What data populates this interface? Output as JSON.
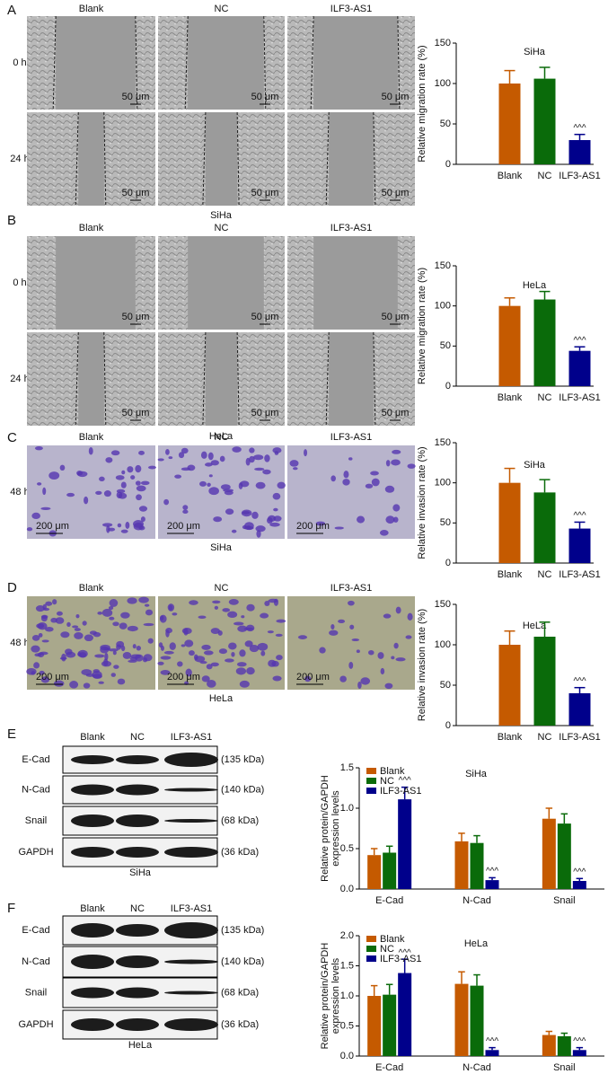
{
  "figure": {
    "panels": [
      {
        "letter": "A",
        "columns": [
          "Blank",
          "NC",
          "ILF3-AS1"
        ],
        "rows": [
          "0 h",
          "24 h"
        ],
        "scale_bar": "50 μm",
        "caption": "SiHa"
      },
      {
        "letter": "B",
        "columns": [
          "Blank",
          "NC",
          "ILF3-AS1"
        ],
        "rows": [
          "0 h",
          "24 h"
        ],
        "scale_bar": "50 μm",
        "caption": "HeLa"
      },
      {
        "letter": "C",
        "columns": [
          "Blank",
          "NC",
          "ILF3-AS1"
        ],
        "rows": [
          "48 h"
        ],
        "scale_bar": "200 μm",
        "caption": "SiHa"
      },
      {
        "letter": "D",
        "columns": [
          "Blank",
          "NC",
          "ILF3-AS1"
        ],
        "rows": [
          "48 h"
        ],
        "scale_bar": "200 μm",
        "caption": "HeLa"
      }
    ],
    "blots": [
      {
        "letter": "E",
        "columns": [
          "Blank",
          "NC",
          "ILF3-AS1"
        ],
        "rows": [
          "E-Cad",
          "N-Cad",
          "Snail",
          "GAPDH"
        ],
        "sizes": [
          "(135 kDa)",
          "(140 kDa)",
          "(68 kDa)",
          "(36 kDa)"
        ],
        "caption": "SiHa"
      },
      {
        "letter": "F",
        "columns": [
          "Blank",
          "NC",
          "ILF3-AS1"
        ],
        "rows": [
          "E-Cad",
          "N-Cad",
          "Snail",
          "GAPDH"
        ],
        "sizes": [
          "(135 kDa)",
          "(140 kDa)",
          "(68 kDa)",
          "(36 kDa)"
        ],
        "caption": "HeLa"
      }
    ]
  },
  "chart_data": [
    {
      "type": "bar",
      "title": "SiHa",
      "ylabel": [
        "Relative migration rate (%)"
      ],
      "categories": [
        "Blank",
        "NC",
        "ILF3-AS1"
      ],
      "values": [
        100,
        106,
        30
      ],
      "errors": [
        16,
        14,
        7
      ],
      "colors": [
        "#c55a00",
        "#0a6b0a",
        "#00008b"
      ],
      "annotations": [
        null,
        null,
        "^^^"
      ],
      "ylim": [
        0,
        150
      ],
      "yticks": [
        0,
        50,
        100,
        150
      ]
    },
    {
      "type": "bar",
      "title": "HeLa",
      "ylabel": [
        "Relative migration rate (%)"
      ],
      "categories": [
        "Blank",
        "NC",
        "ILF3-AS1"
      ],
      "values": [
        100,
        108,
        44
      ],
      "errors": [
        10,
        10,
        5
      ],
      "colors": [
        "#c55a00",
        "#0a6b0a",
        "#00008b"
      ],
      "annotations": [
        null,
        null,
        "^^^"
      ],
      "ylim": [
        0,
        150
      ],
      "yticks": [
        0,
        50,
        100,
        150
      ]
    },
    {
      "type": "bar",
      "title": "SiHa",
      "ylabel": [
        "Relative invasion rate (%)"
      ],
      "categories": [
        "Blank",
        "NC",
        "ILF3-AS1"
      ],
      "values": [
        100,
        88,
        43
      ],
      "errors": [
        18,
        16,
        8
      ],
      "colors": [
        "#c55a00",
        "#0a6b0a",
        "#00008b"
      ],
      "annotations": [
        null,
        null,
        "^^^"
      ],
      "ylim": [
        0,
        150
      ],
      "yticks": [
        0,
        50,
        100,
        150
      ]
    },
    {
      "type": "bar",
      "title": "HeLa",
      "ylabel": [
        "Relative invasion rate (%)"
      ],
      "categories": [
        "Blank",
        "NC",
        "ILF3-AS1"
      ],
      "values": [
        100,
        110,
        40
      ],
      "errors": [
        17,
        18,
        7
      ],
      "colors": [
        "#c55a00",
        "#0a6b0a",
        "#00008b"
      ],
      "annotations": [
        null,
        null,
        "^^^"
      ],
      "ylim": [
        0,
        150
      ],
      "yticks": [
        0,
        50,
        100,
        150
      ]
    },
    {
      "type": "grouped_bar",
      "title": "SiHa",
      "ylabel": [
        "Relative protein/GAPDH",
        "expression levels"
      ],
      "categories": [
        "E-Cad",
        "N-Cad",
        "Snail"
      ],
      "series": [
        {
          "name": "Blank",
          "color": "#c55a00",
          "values": [
            0.42,
            0.59,
            0.87
          ],
          "errors": [
            0.08,
            0.1,
            0.13
          ],
          "annotations": [
            null,
            null,
            null
          ]
        },
        {
          "name": "NC",
          "color": "#0a6b0a",
          "values": [
            0.45,
            0.57,
            0.81
          ],
          "errors": [
            0.08,
            0.09,
            0.12
          ],
          "annotations": [
            null,
            null,
            null
          ]
        },
        {
          "name": "ILF3-AS1",
          "color": "#00008b",
          "values": [
            1.11,
            0.11,
            0.1
          ],
          "errors": [
            0.15,
            0.03,
            0.03
          ],
          "annotations": [
            "^^^",
            "^^^",
            "^^^"
          ]
        }
      ],
      "ylim": [
        0,
        1.5
      ],
      "yticks": [
        {
          "value": 0,
          "label": "0.0"
        },
        {
          "value": 0.5,
          "label": "0.5"
        },
        {
          "value": 1,
          "label": "1.0"
        },
        {
          "value": 1.5,
          "label": "1.5"
        }
      ],
      "legend": "top-left"
    },
    {
      "type": "grouped_bar",
      "title": "HeLa",
      "ylabel": [
        "Relative protein/GAPDH",
        "expression levels"
      ],
      "categories": [
        "E-Cad",
        "N-Cad",
        "Snail"
      ],
      "series": [
        {
          "name": "Blank",
          "color": "#c55a00",
          "values": [
            1.0,
            1.2,
            0.35
          ],
          "errors": [
            0.17,
            0.2,
            0.06
          ],
          "annotations": [
            null,
            null,
            null
          ]
        },
        {
          "name": "NC",
          "color": "#0a6b0a",
          "values": [
            1.02,
            1.17,
            0.33
          ],
          "errors": [
            0.17,
            0.18,
            0.05
          ],
          "annotations": [
            null,
            null,
            null
          ]
        },
        {
          "name": "ILF3-AS1",
          "color": "#00008b",
          "values": [
            1.38,
            0.1,
            0.1
          ],
          "errors": [
            0.23,
            0.04,
            0.04
          ],
          "annotations": [
            "^^^",
            "^^^",
            "^^^"
          ]
        }
      ],
      "ylim": [
        0,
        2
      ],
      "yticks": [
        {
          "value": 0,
          "label": "0.0"
        },
        {
          "value": 0.5,
          "label": "0.5"
        },
        {
          "value": 1,
          "label": "1.0"
        },
        {
          "value": 1.5,
          "label": "1.5"
        },
        {
          "value": 2,
          "label": "2.0"
        }
      ],
      "legend": "top-left"
    }
  ]
}
